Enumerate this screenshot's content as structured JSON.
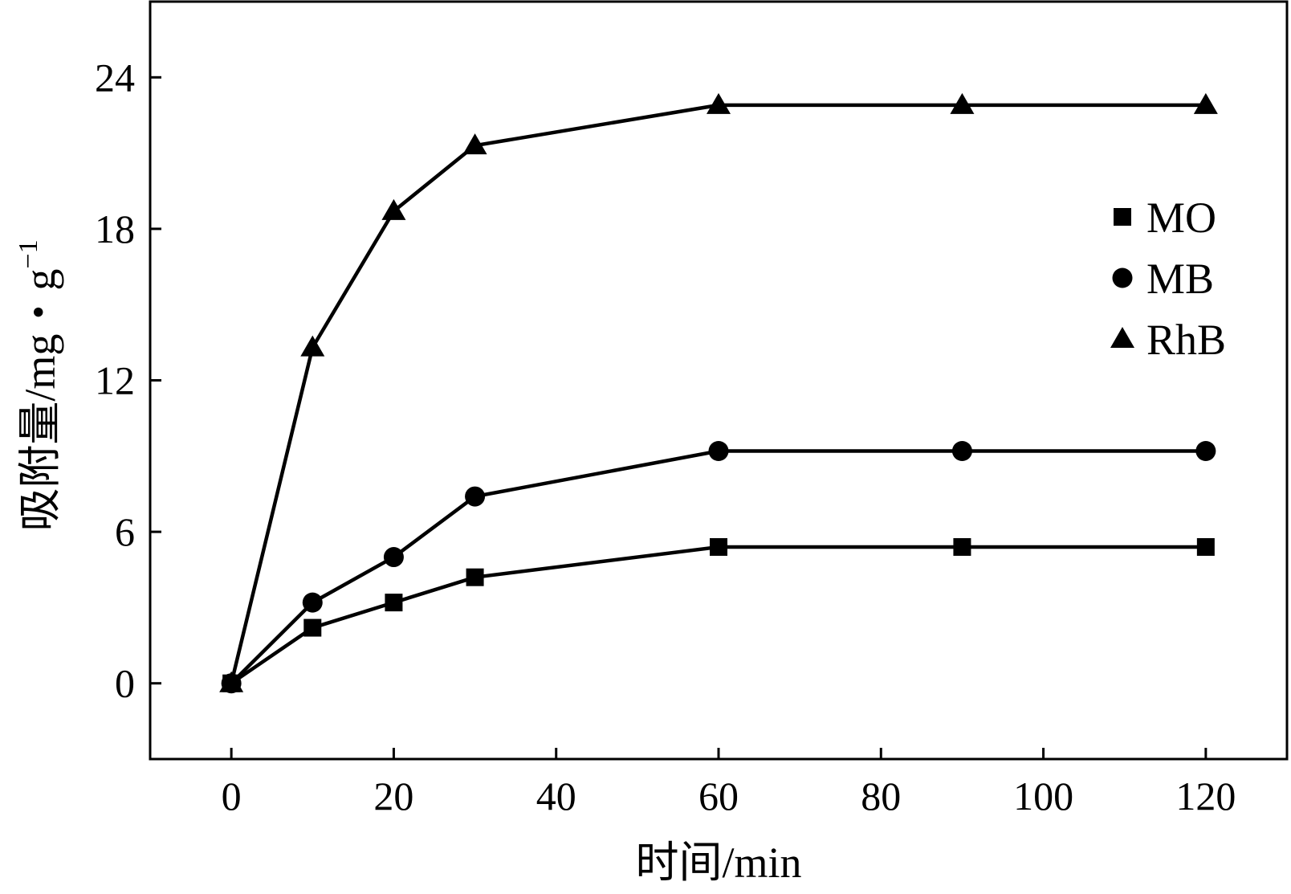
{
  "chart_data": {
    "type": "line",
    "xlabel": "时间/min",
    "ylabel_main": "吸附量/mg・g",
    "ylabel_sup": "−1",
    "xlim": [
      -10,
      130
    ],
    "ylim": [
      -3,
      27
    ],
    "xticks": [
      0,
      20,
      40,
      60,
      80,
      100,
      120
    ],
    "yticks": [
      0,
      6,
      12,
      18,
      24
    ],
    "grid": false,
    "legend_position": "right",
    "x": [
      0,
      10,
      20,
      30,
      60,
      90,
      120
    ],
    "series": [
      {
        "name": "MO",
        "marker": "square",
        "values": [
          0,
          2.2,
          3.2,
          4.2,
          5.4,
          5.4,
          5.4
        ]
      },
      {
        "name": "MB",
        "marker": "circle",
        "values": [
          0,
          3.2,
          5.0,
          7.4,
          9.2,
          9.2,
          9.2
        ]
      },
      {
        "name": "RhB",
        "marker": "triangle",
        "values": [
          0,
          13.3,
          18.7,
          21.3,
          22.9,
          22.9,
          22.9
        ]
      }
    ],
    "color": "#000000"
  }
}
